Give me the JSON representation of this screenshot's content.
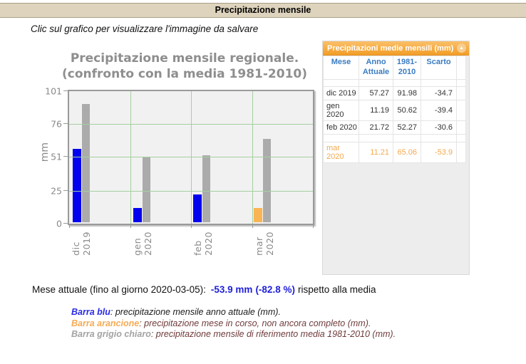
{
  "page": {
    "title_bar": "Precipitazione mensile",
    "instruction": "Clic sul grafico per visualizzare l'immagine da salvare"
  },
  "chart_data": {
    "type": "bar",
    "title_line1": "Precipitazione mensile regionale.",
    "title_line2": "(confronto con la media 1981-2010)",
    "ylabel": "mm",
    "ylim": [
      0,
      101
    ],
    "yticks": [
      0,
      25,
      51,
      76,
      101
    ],
    "grid": true,
    "legend_position": "none",
    "categories": [
      "dic 2019",
      "gen 2020",
      "feb 2020",
      "mar 2020"
    ],
    "series": [
      {
        "name": "Anno Attuale",
        "values": [
          57.27,
          11.19,
          21.72,
          11.21
        ],
        "bar_colors": [
          "#0202ee",
          "#0202ee",
          "#0202ee",
          "#f9b454"
        ]
      },
      {
        "name": "1981-2010",
        "values": [
          91.98,
          50.62,
          52.27,
          65.06
        ],
        "bar_colors": [
          "#ababab",
          "#ababab",
          "#ababab",
          "#ababab"
        ]
      }
    ]
  },
  "table": {
    "title": "Precipitazioni medie mensili (mm)",
    "collapse_icon": "▲",
    "columns": [
      "Mese",
      "Anno Attuale",
      "1981-2010",
      "Scarto",
      ""
    ],
    "rows": [
      {
        "cells": [
          "dic 2019",
          "57.27",
          "91.98",
          "-34.7",
          ""
        ],
        "highlight": false
      },
      {
        "cells": [
          "gen 2020",
          "11.19",
          "50.62",
          "-39.4",
          ""
        ],
        "highlight": false
      },
      {
        "cells": [
          "feb 2020",
          "21.72",
          "52.27",
          "-30.6",
          ""
        ],
        "highlight": false
      },
      {
        "cells": [
          "mar 2020",
          "11.21",
          "65.06",
          "-53.9",
          ""
        ],
        "highlight": true
      }
    ],
    "highlight_color": "#f5a94e"
  },
  "summary": {
    "prefix": "Mese attuale (fino al giorno 2020-03-05):",
    "value_mm": "-53.9 mm",
    "value_pct": "(-82.8 %)",
    "suffix": "rispetto alla media",
    "accent_color": "#1f1fd9"
  },
  "legend": {
    "items": [
      {
        "label": "Barra blu",
        "label_color": "#2a2ae6",
        "desc": ": precipitazione mensile anno attuale (mm).",
        "desc_color": "#1a1a1a"
      },
      {
        "label": "Barra arancione",
        "label_color": "#f5ab55",
        "desc": ": precipitazione mese in corso, non ancora completo (mm).",
        "desc_color": "#6f3a3a"
      },
      {
        "label": "Barra grigio chiaro",
        "label_color": "#a3a3a3",
        "desc": ": precipitazione mensile di riferimento media 1981-2010 (mm).",
        "desc_color": "#6f3a3a"
      }
    ]
  },
  "colors": {
    "topbar_bg": "#ded3bd",
    "plot_bg": "#f1f1f1",
    "gridline_green": "#a5cfa0",
    "bar_blue": "#0202ee",
    "bar_orange": "#f9b454",
    "bar_gray": "#ababab",
    "table_header_orange": "#f3a439"
  }
}
